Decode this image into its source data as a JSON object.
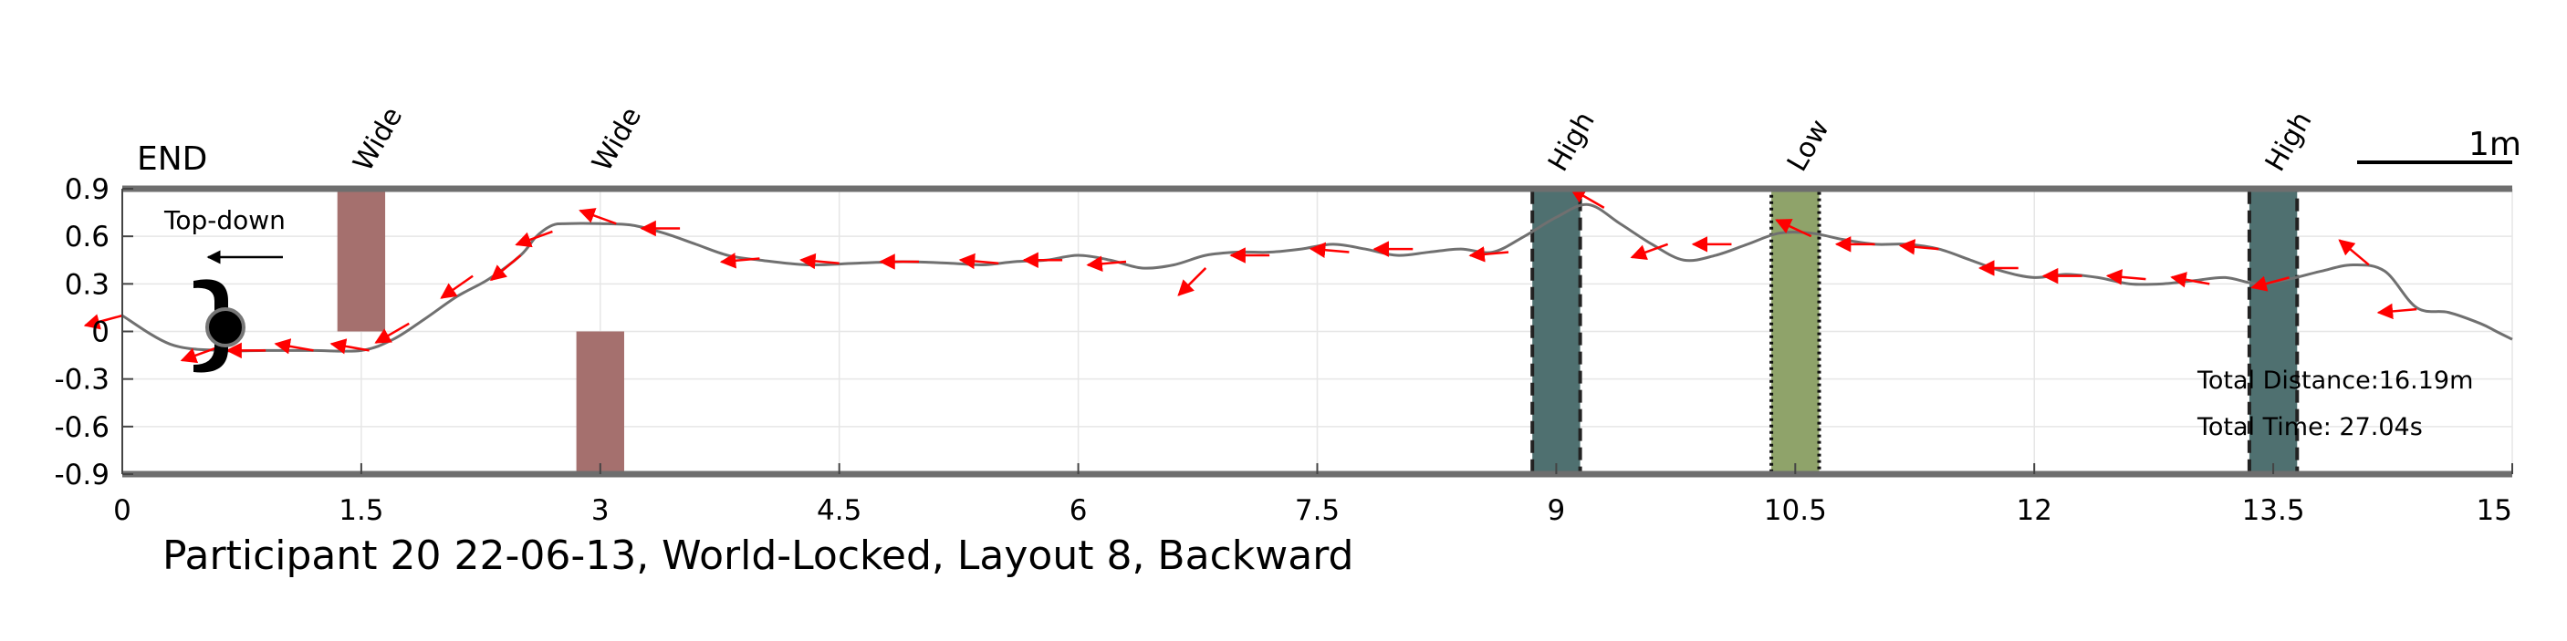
{
  "chart_data": {
    "type": "line",
    "title": "Participant 20 22-06-13, World-Locked, Layout 8, Backward",
    "xlabel": "",
    "ylabel": "",
    "xlim": [
      0,
      15
    ],
    "ylim": [
      -0.9,
      0.9
    ],
    "xticks": [
      0,
      1.5,
      3,
      4.5,
      6,
      7.5,
      9,
      10.5,
      12,
      13.5,
      15
    ],
    "xtick_labels": [
      "0",
      "1.5",
      "3",
      "4.5",
      "6",
      "7.5",
      "9",
      "10.5",
      "12",
      "13.5",
      "15"
    ],
    "yticks": [
      0.9,
      0.6,
      0.3,
      0,
      -0.3,
      -0.6,
      -0.9
    ],
    "ytick_labels": [
      "0.9",
      "0.6",
      "0.3",
      "0",
      "-0.3",
      "-0.6",
      "-0.9"
    ],
    "grid": true,
    "end_label": "END",
    "scale_bar_label": "1m",
    "inset_label": "Top-down",
    "total_distance": "Total Distance:16.19m",
    "total_time": "Total Time: 27.04s",
    "obstacles": [
      {
        "label": "Wide",
        "type": "wall",
        "x0": 1.35,
        "x1": 1.65,
        "y0": 0.0,
        "y1": 0.9,
        "color": "#a5706e"
      },
      {
        "label": "Wide",
        "type": "wall",
        "x0": 2.85,
        "x1": 3.15,
        "y0": -0.9,
        "y1": 0.0,
        "color": "#a5706e"
      },
      {
        "label": "High",
        "type": "high",
        "x0": 8.85,
        "x1": 9.15,
        "y0": -0.9,
        "y1": 0.9,
        "color": "#4f7070"
      },
      {
        "label": "Low",
        "type": "low",
        "x0": 10.35,
        "x1": 10.65,
        "y0": -0.9,
        "y1": 0.9,
        "color": "#8fa36a"
      },
      {
        "label": "High",
        "type": "high",
        "x0": 13.35,
        "x1": 13.65,
        "y0": -0.9,
        "y1": 0.9,
        "color": "#4f7070"
      }
    ],
    "series": [
      {
        "type": "path",
        "color": "#707070",
        "x": [
          0.0,
          0.3,
          0.6,
          0.9,
          1.2,
          1.5,
          1.7,
          1.9,
          2.1,
          2.3,
          2.5,
          2.6,
          2.7,
          2.8,
          3.0,
          3.2,
          3.4,
          3.6,
          3.8,
          4.0,
          4.3,
          4.6,
          4.9,
          5.2,
          5.4,
          5.6,
          5.8,
          6.0,
          6.2,
          6.4,
          6.6,
          6.8,
          7.0,
          7.2,
          7.4,
          7.6,
          7.8,
          8.0,
          8.2,
          8.4,
          8.6,
          8.8,
          9.0,
          9.2,
          9.4,
          9.6,
          9.8,
          10.0,
          10.2,
          10.4,
          10.6,
          10.8,
          11.0,
          11.2,
          11.4,
          11.6,
          11.8,
          12.0,
          12.2,
          12.4,
          12.6,
          12.8,
          13.0,
          13.2,
          13.4,
          13.6,
          13.8,
          14.0,
          14.2,
          14.4,
          14.6,
          14.8,
          14.9,
          15.0
        ],
        "y": [
          0.1,
          -0.08,
          -0.12,
          -0.12,
          -0.12,
          -0.12,
          -0.05,
          0.08,
          0.22,
          0.33,
          0.48,
          0.6,
          0.67,
          0.68,
          0.68,
          0.67,
          0.62,
          0.55,
          0.48,
          0.45,
          0.42,
          0.43,
          0.44,
          0.43,
          0.42,
          0.44,
          0.45,
          0.48,
          0.45,
          0.4,
          0.42,
          0.48,
          0.5,
          0.5,
          0.52,
          0.55,
          0.52,
          0.48,
          0.5,
          0.52,
          0.5,
          0.6,
          0.72,
          0.8,
          0.68,
          0.55,
          0.45,
          0.48,
          0.55,
          0.62,
          0.62,
          0.58,
          0.55,
          0.55,
          0.52,
          0.45,
          0.38,
          0.34,
          0.36,
          0.34,
          0.3,
          0.3,
          0.32,
          0.34,
          0.3,
          0.33,
          0.38,
          0.42,
          0.38,
          0.15,
          0.12,
          0.05,
          0.0,
          -0.05
        ]
      }
    ],
    "orientation_arrows": {
      "color": "#ff0000",
      "x": [
        0.0,
        0.6,
        0.9,
        1.2,
        1.55,
        1.8,
        2.2,
        2.5,
        2.7,
        3.1,
        3.5,
        4.0,
        4.5,
        5.0,
        5.5,
        5.9,
        6.3,
        6.8,
        7.2,
        7.7,
        8.1,
        8.7,
        9.3,
        9.7,
        10.1,
        10.6,
        11.0,
        11.4,
        11.9,
        12.3,
        12.7,
        13.1,
        13.6,
        14.1,
        14.4
      ],
      "y": [
        0.1,
        -0.1,
        -0.12,
        -0.12,
        -0.12,
        0.05,
        0.35,
        0.48,
        0.63,
        0.68,
        0.65,
        0.46,
        0.43,
        0.44,
        0.43,
        0.45,
        0.44,
        0.4,
        0.48,
        0.5,
        0.52,
        0.5,
        0.78,
        0.55,
        0.55,
        0.6,
        0.55,
        0.52,
        0.4,
        0.35,
        0.33,
        0.3,
        0.34,
        0.42,
        0.14
      ],
      "angle_deg": [
        195,
        200,
        180,
        170,
        170,
        210,
        215,
        220,
        200,
        160,
        180,
        185,
        175,
        180,
        175,
        180,
        185,
        225,
        180,
        175,
        180,
        185,
        150,
        200,
        180,
        155,
        180,
        175,
        180,
        180,
        175,
        170,
        195,
        140,
        185
      ]
    }
  }
}
